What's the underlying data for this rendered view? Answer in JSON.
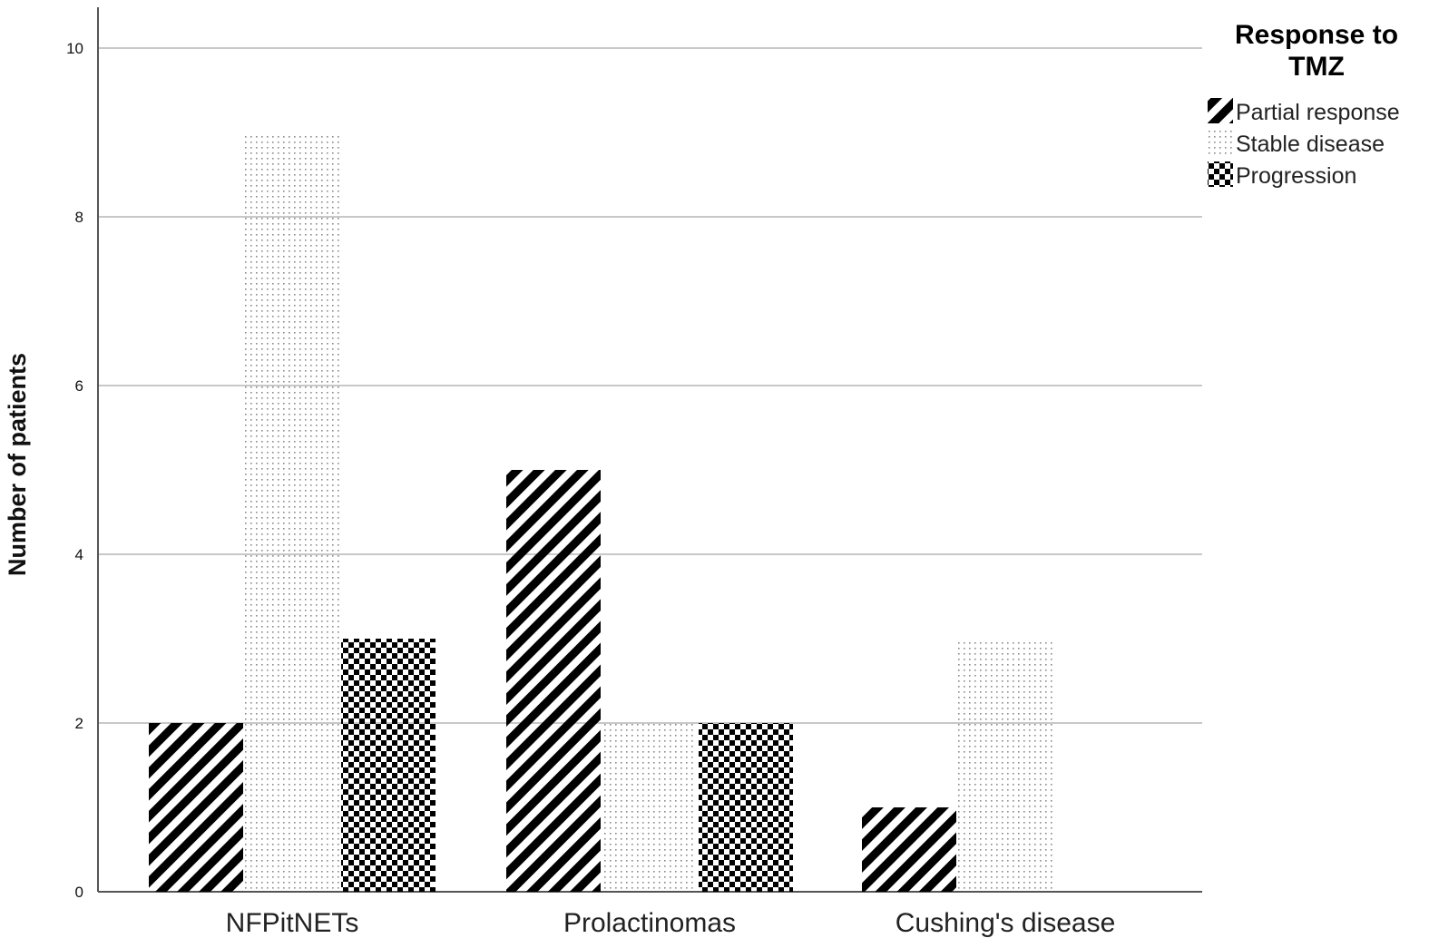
{
  "chart_data": {
    "type": "bar",
    "ylabel": "Number of patients",
    "xlabel": "",
    "ylim": [
      0,
      10.5
    ],
    "yticks": [
      0,
      2,
      4,
      6,
      8,
      10
    ],
    "grid": true,
    "legend_position": "top-right",
    "legend_title_lines": [
      "Response to",
      "TMZ"
    ],
    "categories": [
      "NFPitNETs",
      "Prolactinomas",
      "Cushing's disease"
    ],
    "series": [
      {
        "name": "Partial response",
        "pattern": "diagonal-stripes",
        "values": [
          2,
          5,
          1
        ]
      },
      {
        "name": "Stable disease",
        "pattern": "dots",
        "values": [
          9,
          2,
          3
        ]
      },
      {
        "name": "Progression",
        "pattern": "checkerboard",
        "values": [
          3,
          2,
          0
        ]
      }
    ],
    "colors": {
      "ink": "#000000",
      "grid": "#c8c8c8",
      "axis": "#555555"
    }
  }
}
